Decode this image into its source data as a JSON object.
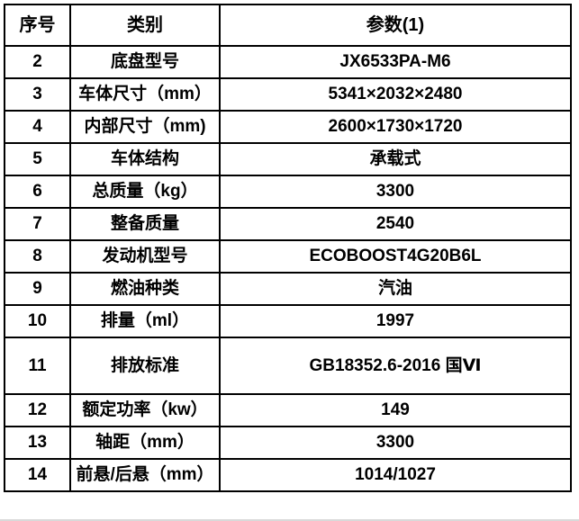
{
  "table": {
    "headers": [
      "序号",
      "类别",
      "参数(1)"
    ],
    "rows": [
      {
        "no": "2",
        "category": "底盘型号",
        "value": "JX6533PA-M6"
      },
      {
        "no": "3",
        "category": "车体尺寸（mm）",
        "value": "5341×2032×2480"
      },
      {
        "no": "4",
        "category": "内部尺寸（mm)",
        "value": "2600×1730×1720"
      },
      {
        "no": "5",
        "category": "车体结构",
        "value": "承载式"
      },
      {
        "no": "6",
        "category": "总质量（kg）",
        "value": "3300"
      },
      {
        "no": "7",
        "category": "整备质量",
        "value": "2540"
      },
      {
        "no": "8",
        "category": "发动机型号",
        "value": "ECOBOOST4G20B6L"
      },
      {
        "no": "9",
        "category": "燃油种类",
        "value": "汽油"
      },
      {
        "no": "10",
        "category": "排量（ml）",
        "value": "1997"
      },
      {
        "no": "11",
        "category": "排放标准",
        "value": "GB18352.6-2016 国Ⅵ",
        "tall": true
      },
      {
        "no": "12",
        "category": "额定功率（kw）",
        "value": "149"
      },
      {
        "no": "13",
        "category": "轴距（mm）",
        "value": "3300"
      },
      {
        "no": "14",
        "category": "前悬/后悬（mm）",
        "value": "1014/1027"
      }
    ],
    "colors": {
      "border": "#000000",
      "text": "#000000",
      "background": "#ffffff"
    }
  }
}
